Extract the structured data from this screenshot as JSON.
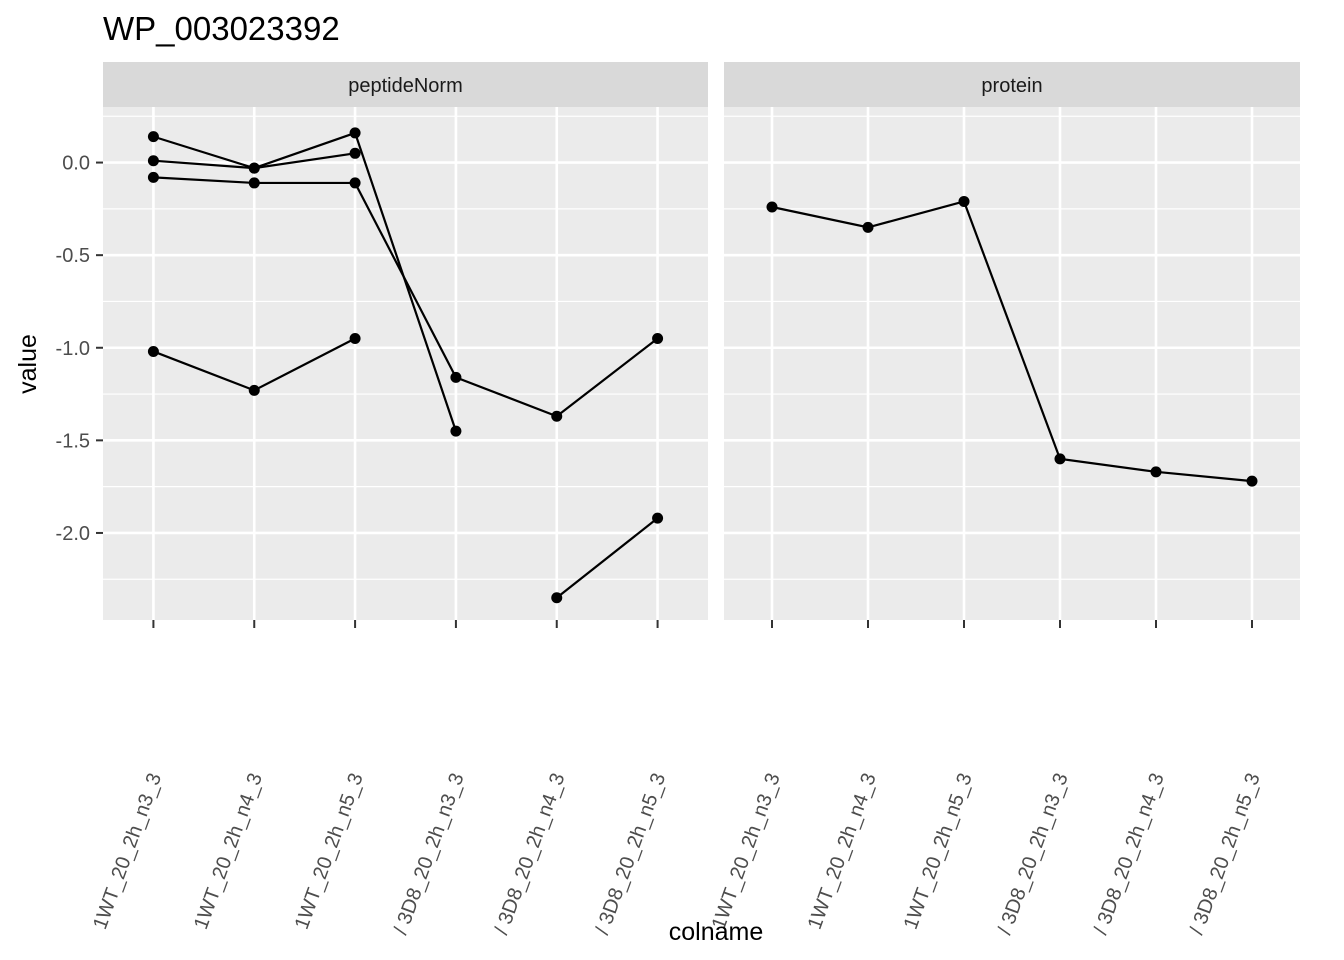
{
  "chart_data": {
    "type": "line",
    "title": "WP_003023392",
    "xlabel": "colname",
    "ylabel": "value",
    "ylim": [
      -2.47,
      0.3
    ],
    "y_ticks": [
      0.0,
      -0.5,
      -1.0,
      -1.5,
      -2.0
    ],
    "y_tick_labels": [
      "0.0",
      "-0.5",
      "-1.0",
      "-1.5",
      "-2.0"
    ],
    "grid": true,
    "categories": [
      "1WT_20_2h_n3_3",
      "1WT_20_2h_n4_3",
      "1WT_20_2h_n5_3",
      "/ 3D8_20_2h_n3_3",
      "/ 3D8_20_2h_n4_3",
      "/ 3D8_20_2h_n5_3"
    ],
    "panels": [
      {
        "strip": "peptideNorm",
        "series": [
          {
            "values": [
              0.14,
              -0.03,
              0.05,
              null,
              null,
              null
            ]
          },
          {
            "values": [
              0.01,
              -0.03,
              0.16,
              -1.45,
              null,
              null
            ]
          },
          {
            "values": [
              -0.08,
              -0.11,
              -0.11,
              -1.16,
              -1.37,
              -0.95
            ]
          },
          {
            "values": [
              -1.02,
              -1.23,
              -0.95,
              null,
              -2.35,
              -1.92
            ]
          }
        ]
      },
      {
        "strip": "protein",
        "series": [
          {
            "values": [
              -0.24,
              -0.35,
              -0.21,
              -1.6,
              -1.67,
              -1.72
            ]
          }
        ]
      }
    ]
  }
}
